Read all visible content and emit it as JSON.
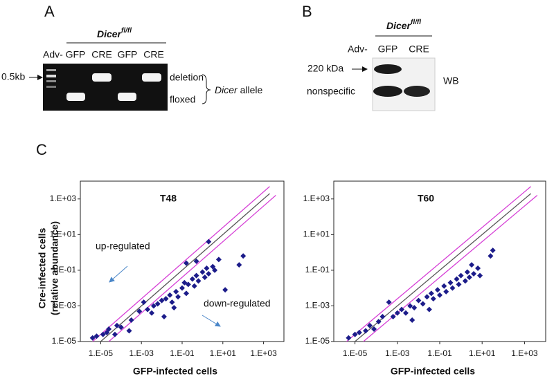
{
  "panel_a": {
    "label": "A",
    "genotype": {
      "gene": "Dicer",
      "superscript": "fl/fl"
    },
    "vector": "Adv-",
    "lanes": [
      "GFP",
      "CRE",
      "GFP",
      "CRE"
    ],
    "marker": "0.5kb",
    "bands": [
      "deletion",
      "floxed"
    ],
    "allele": {
      "gene": "Dicer",
      "suffix": "allele"
    }
  },
  "panel_b": {
    "label": "B",
    "genotype": {
      "gene": "Dicer",
      "superscript": "fl/fl"
    },
    "vector": "Adv-",
    "lanes": [
      "GFP",
      "CRE"
    ],
    "bands": [
      "220 kDa",
      "nonspecific"
    ],
    "method": "WB"
  },
  "panel_c": {
    "label": "C"
  },
  "chart_data": [
    {
      "type": "scatter",
      "title": "T48",
      "xlabel": "GFP-infected cells",
      "ylabel": [
        "Cre-infected cells",
        "(relative abundance)"
      ],
      "annotations": [
        "up-regulated",
        "down-regulated"
      ],
      "xscale": "log",
      "yscale": "log",
      "color": "#1c1c8a",
      "marker": "diamond",
      "xlim": [
        1e-06,
        10000.0
      ],
      "ylim": [
        1e-05,
        10000.0
      ],
      "xticks": [
        {
          "value": 1e-05,
          "label": "1.E-05"
        },
        {
          "value": 0.001,
          "label": "1.E-03"
        },
        {
          "value": 0.1,
          "label": "1.E-01"
        },
        {
          "value": 10,
          "label": "1.E+01"
        },
        {
          "value": 1000,
          "label": "1.E+03"
        }
      ],
      "yticks": [
        {
          "value": 1e-05,
          "label": "1.E-05"
        },
        {
          "value": 0.001,
          "label": "1.E-03"
        },
        {
          "value": 0.1,
          "label": "1.E-01"
        },
        {
          "value": 10,
          "label": "1.E+01"
        },
        {
          "value": 1000,
          "label": "1.E+03"
        }
      ],
      "lines": [
        {
          "color": "#555555",
          "x": [
            1e-05,
            2000
          ],
          "values": [
            1e-05,
            2000
          ]
        },
        {
          "color": "#d63fd6",
          "x": [
            4e-06,
            2000
          ],
          "values": [
            1e-05,
            5000
          ]
        },
        {
          "color": "#d63fd6",
          "x": [
            2.5e-05,
            4000
          ],
          "values": [
            1e-05,
            1600
          ]
        }
      ],
      "x": [
        4e-06,
        6.3e-06,
        1.3e-05,
        2e-05,
        2.5e-05,
        5e-05,
        6.3e-05,
        0.0001,
        0.00025,
        0.00032,
        0.00079,
        0.0013,
        0.002,
        0.0032,
        0.004,
        0.0063,
        0.01,
        0.016,
        0.025,
        0.032,
        0.05,
        0.063,
        0.1,
        0.13,
        0.16,
        0.2,
        0.32,
        0.4,
        0.5,
        0.63,
        1,
        1.3,
        1.6,
        2.0,
        3.2,
        4.0,
        6.3,
        0.16,
        0.5,
        2.0,
        13,
        100,
        63,
        0.013,
        0.04
      ],
      "values": [
        1.6e-05,
        2e-05,
        2.5e-05,
        3.2e-05,
        5e-05,
        2.5e-05,
        7.9e-05,
        6.3e-05,
        4e-05,
        0.00016,
        0.0005,
        0.0016,
        0.00063,
        0.0004,
        0.001,
        0.0013,
        0.002,
        0.0025,
        0.004,
        0.0016,
        0.0063,
        0.0032,
        0.01,
        0.02,
        0.005,
        0.016,
        0.032,
        0.013,
        0.05,
        0.025,
        0.079,
        0.04,
        0.13,
        0.063,
        0.16,
        0.1,
        0.4,
        0.25,
        0.32,
        4.0,
        0.0079,
        0.63,
        0.2,
        0.00025,
        0.00079
      ]
    },
    {
      "type": "scatter",
      "title": "T60",
      "xlabel": "GFP-infected cells",
      "xscale": "log",
      "yscale": "log",
      "color": "#1c1c8a",
      "marker": "diamond",
      "xlim": [
        1e-06,
        10000.0
      ],
      "ylim": [
        1e-05,
        10000.0
      ],
      "xticks": [
        {
          "value": 1e-05,
          "label": "1.E-05"
        },
        {
          "value": 0.001,
          "label": "1.E-03"
        },
        {
          "value": 0.1,
          "label": "1.E-01"
        },
        {
          "value": 10,
          "label": "1.E+01"
        },
        {
          "value": 1000,
          "label": "1.E+03"
        }
      ],
      "yticks": [
        {
          "value": 1e-05,
          "label": "1.E-05"
        },
        {
          "value": 0.001,
          "label": "1.E-03"
        },
        {
          "value": 0.1,
          "label": "1.E-01"
        },
        {
          "value": 10,
          "label": "1.E+01"
        },
        {
          "value": 1000,
          "label": "1.E+03"
        }
      ],
      "lines": [
        {
          "color": "#555555",
          "x": [
            1e-05,
            2000
          ],
          "values": [
            1e-05,
            2000
          ]
        },
        {
          "color": "#d63fd6",
          "x": [
            4e-06,
            2000
          ],
          "values": [
            1e-05,
            5000
          ]
        },
        {
          "color": "#d63fd6",
          "x": [
            2.5e-05,
            4000
          ],
          "values": [
            1e-05,
            1600
          ]
        }
      ],
      "x": [
        5e-06,
        1e-05,
        1.6e-05,
        3.2e-05,
        5e-05,
        7.9e-05,
        0.00013,
        0.0002,
        0.0004,
        0.00063,
        0.001,
        0.0016,
        0.0025,
        0.004,
        0.0063,
        0.01,
        0.016,
        0.025,
        0.04,
        0.05,
        0.079,
        0.1,
        0.16,
        0.2,
        0.32,
        0.4,
        0.63,
        0.79,
        1,
        1.6,
        2.0,
        2.5,
        4.0,
        6.3,
        7.9,
        32,
        25,
        0.032,
        0.005,
        3.2
      ],
      "values": [
        1.6e-05,
        2.5e-05,
        3.2e-05,
        4e-05,
        7.9e-05,
        5e-05,
        0.00013,
        0.00025,
        0.0016,
        0.00025,
        0.0004,
        0.00063,
        0.0004,
        0.001,
        0.00079,
        0.002,
        0.0013,
        0.0032,
        0.005,
        0.0025,
        0.0079,
        0.004,
        0.013,
        0.0063,
        0.02,
        0.01,
        0.032,
        0.016,
        0.05,
        0.025,
        0.079,
        0.04,
        0.063,
        0.13,
        0.05,
        1.3,
        0.63,
        0.00063,
        0.00016,
        0.2
      ]
    }
  ]
}
